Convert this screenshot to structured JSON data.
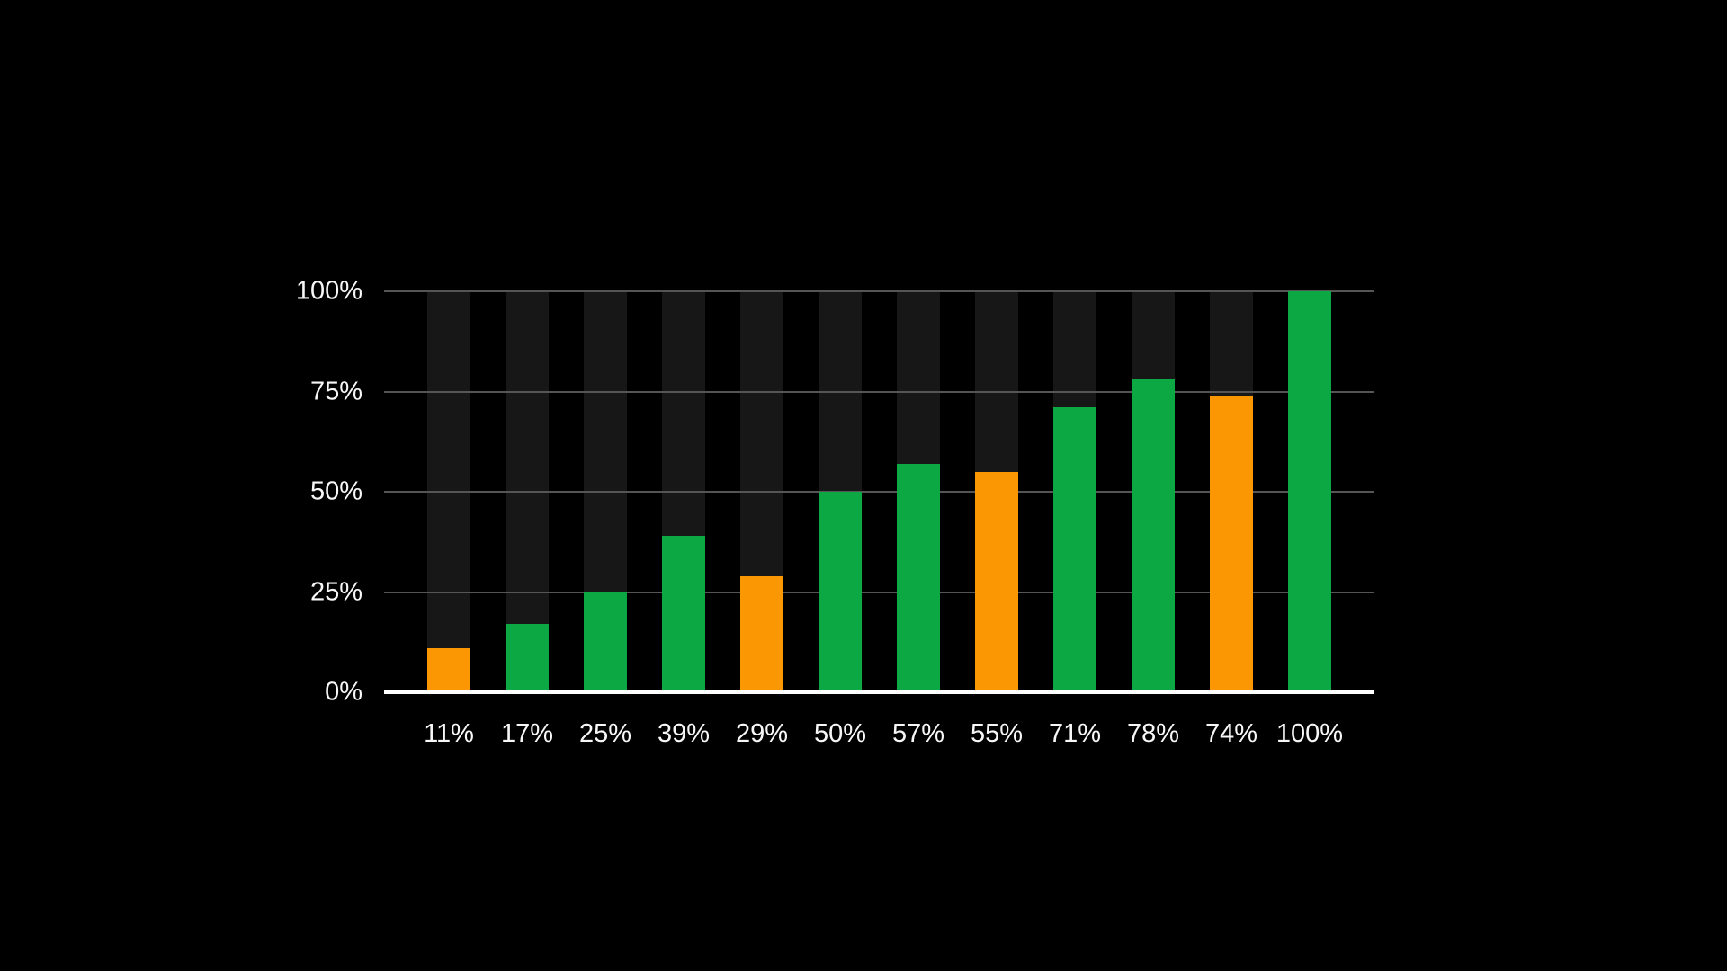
{
  "page": {
    "background": "#000000"
  },
  "chart_data": {
    "type": "bar",
    "title": "",
    "xlabel": "",
    "ylabel": "",
    "categories": [
      "11%",
      "17%",
      "25%",
      "39%",
      "29%",
      "50%",
      "57%",
      "55%",
      "71%",
      "78%",
      "74%",
      "100%"
    ],
    "values": [
      11,
      17,
      25,
      39,
      29,
      50,
      57,
      55,
      71,
      78,
      74,
      100
    ],
    "bar_colors": [
      "orange",
      "green",
      "green",
      "green",
      "orange",
      "green",
      "green",
      "orange",
      "green",
      "green",
      "orange",
      "green"
    ],
    "palette": {
      "green": "#0BA843",
      "orange": "#FB9702",
      "track": "#171717",
      "gridline": "#555555",
      "axis_line": "#FFFFFF",
      "label_text": "#F7F7F7",
      "background": "#000000"
    },
    "y_ticks": [
      {
        "label": "0%",
        "value": 0
      },
      {
        "label": "25%",
        "value": 25
      },
      {
        "label": "50%",
        "value": 50
      },
      {
        "label": "75%",
        "value": 75
      },
      {
        "label": "100%",
        "value": 100
      }
    ],
    "ylim": [
      0,
      100
    ],
    "grid": true,
    "legend": false,
    "background_tracks_to_100": true
  }
}
